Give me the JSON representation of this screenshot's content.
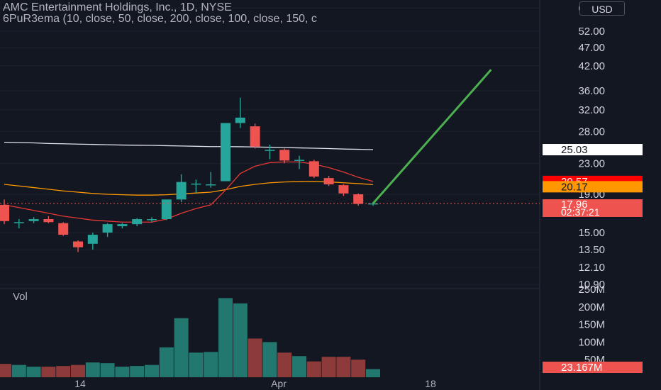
{
  "header": {
    "title": "AMC Entertainment Holdings, Inc., 1D, NYSE",
    "indicator": "6PuR3ema (10, close, 50, close, 200, close, 100, close, 150, c"
  },
  "currency_button": "USD",
  "volume_label": "Vol",
  "price_axis": [
    "60.00",
    "52.00",
    "47.00",
    "42.00",
    "36.00",
    "32.00",
    "28.00",
    "23.00",
    "19.00",
    "15.00",
    "13.50",
    "12.10",
    "10.90"
  ],
  "volume_axis": [
    "250M",
    "200M",
    "150M",
    "100M",
    "50M"
  ],
  "time_axis": [
    "14",
    "Apr",
    "18"
  ],
  "price_tags": {
    "ema_white": "25.03",
    "ema_red": "20.57",
    "ema_orange": "20.17",
    "last_price": "17.96",
    "countdown": "02:37:21",
    "volume_last": "23.167M"
  },
  "colors": {
    "background": "#131722",
    "up": "#26a69a",
    "down": "#ef5350",
    "ema_red": "#e53935",
    "ema_orange": "#ff9800",
    "ema_white": "#e0e3eb",
    "trend_line": "#4caf50"
  },
  "chart_data": {
    "type": "candlestick",
    "title": "AMC Entertainment Holdings, Inc., 1D, NYSE",
    "candles": [
      {
        "o": 17.8,
        "h": 18.4,
        "l": 15.8,
        "c": 16.1
      },
      {
        "o": 15.9,
        "h": 16.3,
        "l": 15.4,
        "c": 16.0
      },
      {
        "o": 16.1,
        "h": 16.5,
        "l": 15.9,
        "c": 16.3
      },
      {
        "o": 16.3,
        "h": 16.6,
        "l": 15.9,
        "c": 16.0
      },
      {
        "o": 15.9,
        "h": 16.0,
        "l": 14.7,
        "c": 14.8
      },
      {
        "o": 14.2,
        "h": 14.3,
        "l": 13.3,
        "c": 13.7
      },
      {
        "o": 14.0,
        "h": 15.0,
        "l": 13.5,
        "c": 14.8
      },
      {
        "o": 15.0,
        "h": 15.9,
        "l": 14.6,
        "c": 15.8
      },
      {
        "o": 15.6,
        "h": 15.9,
        "l": 15.4,
        "c": 15.8
      },
      {
        "o": 15.8,
        "h": 16.4,
        "l": 15.6,
        "c": 16.3
      },
      {
        "o": 16.3,
        "h": 16.5,
        "l": 16.0,
        "c": 16.3
      },
      {
        "o": 16.3,
        "h": 18.4,
        "l": 16.2,
        "c": 18.4
      },
      {
        "o": 18.4,
        "h": 21.5,
        "l": 18.1,
        "c": 20.5
      },
      {
        "o": 20.2,
        "h": 20.8,
        "l": 19.2,
        "c": 20.3
      },
      {
        "o": 20.2,
        "h": 21.8,
        "l": 19.8,
        "c": 20.2
      },
      {
        "o": 20.6,
        "h": 29.5,
        "l": 20.6,
        "c": 29.5
      },
      {
        "o": 29.5,
        "h": 34.5,
        "l": 28.6,
        "c": 30.5
      },
      {
        "o": 28.9,
        "h": 29.4,
        "l": 25.2,
        "c": 25.5
      },
      {
        "o": 25.0,
        "h": 25.8,
        "l": 23.6,
        "c": 25.0
      },
      {
        "o": 25.0,
        "h": 25.2,
        "l": 23.0,
        "c": 23.4
      },
      {
        "o": 23.4,
        "h": 24.1,
        "l": 22.2,
        "c": 23.5
      },
      {
        "o": 23.3,
        "h": 23.5,
        "l": 21.0,
        "c": 21.2
      },
      {
        "o": 21.0,
        "h": 21.3,
        "l": 20.0,
        "c": 20.2
      },
      {
        "o": 20.1,
        "h": 20.2,
        "l": 18.8,
        "c": 19.1
      },
      {
        "o": 19.0,
        "h": 19.1,
        "l": 17.7,
        "c": 17.9
      },
      {
        "o": 17.9,
        "h": 18.1,
        "l": 17.7,
        "c": 17.96
      }
    ],
    "volume_millions": [
      38,
      35,
      30,
      30,
      32,
      35,
      42,
      40,
      30,
      32,
      35,
      85,
      168,
      70,
      72,
      225,
      210,
      110,
      100,
      70,
      60,
      45,
      58,
      58,
      50,
      23.167
    ],
    "ema_red": [
      17.8,
      17.5,
      17.2,
      16.9,
      16.6,
      16.4,
      16.2,
      16.1,
      16.0,
      16.0,
      16.0,
      16.3,
      16.9,
      17.4,
      17.8,
      19.5,
      21.6,
      22.6,
      23.1,
      23.2,
      23.2,
      22.9,
      22.4,
      21.8,
      21.1,
      20.57
    ],
    "ema_orange": [
      20.2,
      20.0,
      19.8,
      19.6,
      19.4,
      19.25,
      19.1,
      19.0,
      18.95,
      18.9,
      18.9,
      18.95,
      19.05,
      19.15,
      19.25,
      19.55,
      19.95,
      20.2,
      20.4,
      20.5,
      20.55,
      20.57,
      20.52,
      20.4,
      20.3,
      20.17
    ],
    "ema_white": [
      26.2,
      26.15,
      26.1,
      26.0,
      25.95,
      25.9,
      25.85,
      25.8,
      25.75,
      25.72,
      25.7,
      25.65,
      25.6,
      25.55,
      25.5,
      25.5,
      25.48,
      25.45,
      25.4,
      25.35,
      25.3,
      25.25,
      25.2,
      25.12,
      25.08,
      25.03
    ],
    "trend_line": {
      "from_index": 25,
      "from_price": 17.96,
      "to_index": 33,
      "to_price": 41.0
    },
    "ylim": [
      10.9,
      60.0
    ],
    "y_scale": "log",
    "xlabel": "",
    "ylabel": ""
  }
}
